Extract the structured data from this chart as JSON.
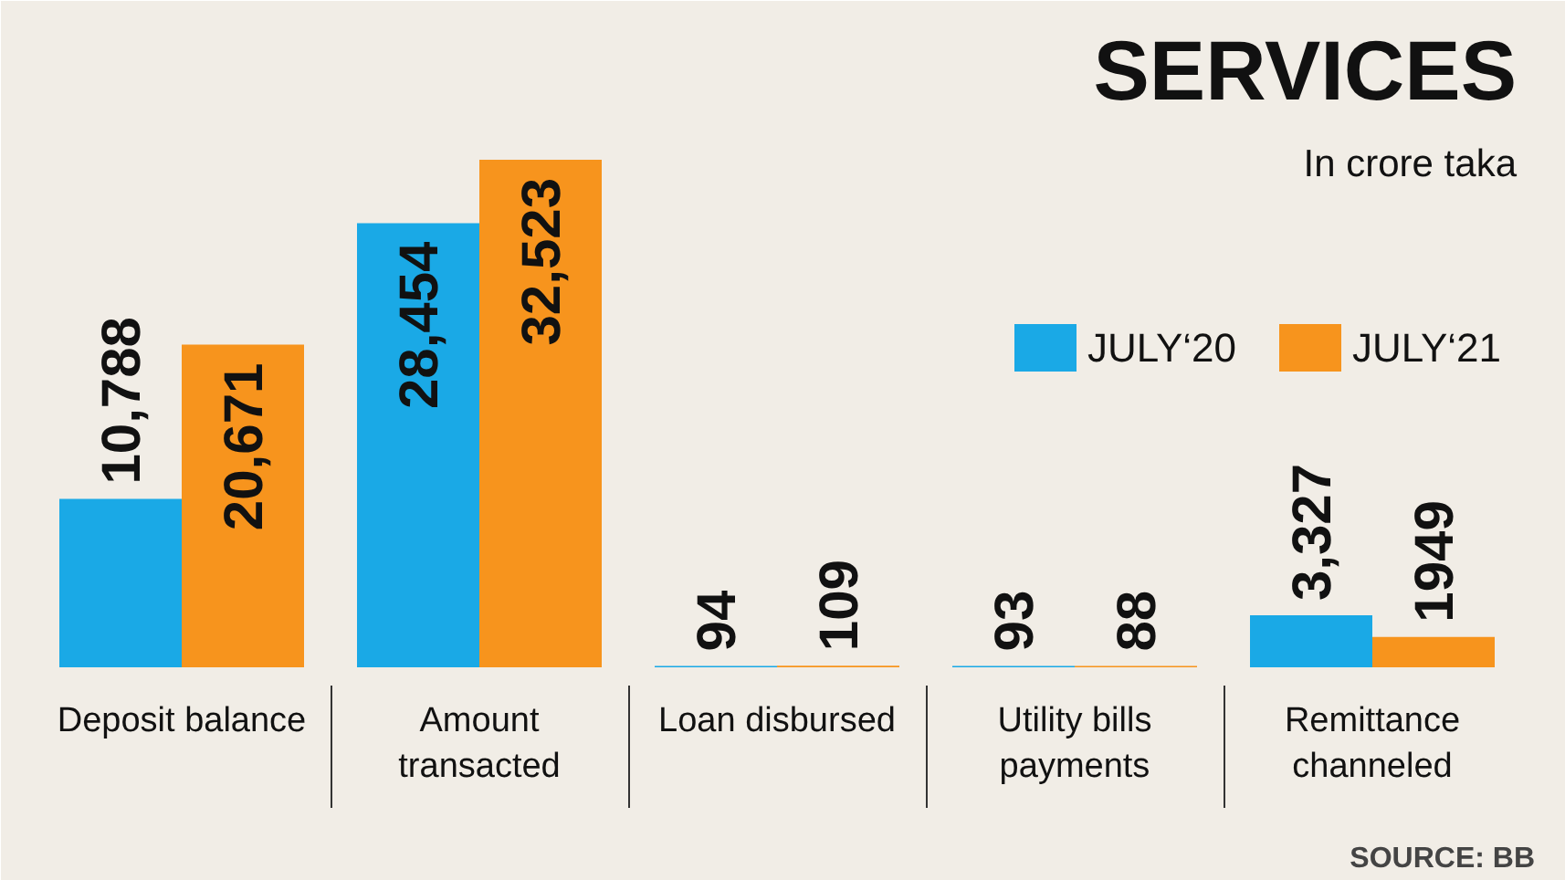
{
  "chart_data": {
    "type": "bar",
    "title": "SERVICES",
    "subtitle": "In crore taka",
    "categories": [
      "Deposit balance",
      "Amount\ntransacted",
      "Loan disbursed",
      "Utility bills\npayments",
      "Remittance\nchanneled"
    ],
    "series": [
      {
        "name": "JULY‘20",
        "color": "#1aa9e6",
        "values": [
          10788,
          28454,
          94,
          93,
          3327
        ],
        "value_labels": [
          "10,788",
          "28,454",
          "94",
          "93",
          "3,327"
        ]
      },
      {
        "name": "JULY‘21",
        "color": "#f7941d",
        "values": [
          20671,
          32523,
          109,
          88,
          1949
        ],
        "value_labels": [
          "20,671",
          "32,523",
          "109",
          "88",
          "1949"
        ]
      }
    ],
    "legend": "top right",
    "annotations": [
      "SOURCE: BB"
    ]
  }
}
